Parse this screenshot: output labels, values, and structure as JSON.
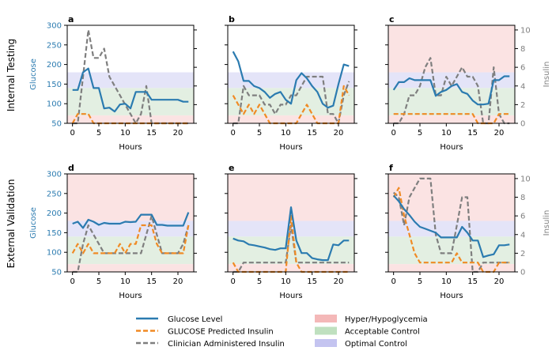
{
  "row_labels": [
    "Internal Testing",
    "External Validation"
  ],
  "y_left_label": "Glucose",
  "y_right_label": "Insulin",
  "x_label": "Hours",
  "colors": {
    "glucose": "#2b7bb0",
    "predicted": "#f08a24",
    "clinician": "#7f7f7f",
    "hyper": "#fbe3e3",
    "acceptable": "#e3efe2",
    "optimal": "#e4e4f8",
    "glucose_axis": "#2b7bb0",
    "insulin_axis": "#808080"
  },
  "legend": {
    "lines": [
      {
        "key": "glucose",
        "label": "Glucose Level",
        "style": "solid"
      },
      {
        "key": "predicted",
        "label": "GLUCOSE Predicted Insulin",
        "style": "dashed"
      },
      {
        "key": "clinician",
        "label": "Clinician Administered Insulin",
        "style": "dashed"
      }
    ],
    "patches": [
      {
        "key": "hyper",
        "label": "Hyper/Hypoglycemia",
        "swatch": "#f4b8b8"
      },
      {
        "key": "acceptable",
        "label": "Acceptable Control",
        "swatch": "#bfe0bf"
      },
      {
        "key": "optimal",
        "label": "Optimal Control",
        "swatch": "#c4c4f0"
      }
    ]
  },
  "chart_data": [
    {
      "panel": "a",
      "type": "line",
      "x": [
        0,
        1,
        2,
        3,
        4,
        5,
        6,
        7,
        8,
        9,
        10,
        11,
        12,
        13,
        14,
        15,
        16,
        17,
        18,
        19,
        20,
        21,
        22
      ],
      "series": [
        {
          "name": "Glucose Level",
          "axis": "left",
          "values": [
            135,
            135,
            180,
            190,
            140,
            140,
            88,
            90,
            80,
            98,
            100,
            88,
            130,
            130,
            130,
            110,
            110,
            110,
            110,
            110,
            110,
            105,
            105
          ]
        },
        {
          "name": "GLUCOSE Predicted Insulin",
          "axis": "right",
          "values": [
            0,
            1,
            1,
            1,
            0,
            0,
            0,
            0,
            0,
            0,
            0,
            0,
            0,
            0,
            0,
            0,
            0,
            0,
            0,
            0,
            0,
            0,
            0
          ]
        },
        {
          "name": "Clinician Administered Insulin",
          "axis": "right",
          "values": [
            0,
            0,
            5,
            10,
            7,
            7,
            8,
            5,
            4,
            3,
            2,
            1,
            0,
            1,
            4,
            0,
            0,
            0,
            0,
            0,
            0,
            0,
            0
          ]
        }
      ],
      "bands": {
        "hyper": false
      },
      "ylim_left": [
        50,
        300
      ],
      "ylim_right": [
        0,
        10.5
      ],
      "xlim": [
        -1,
        23
      ],
      "xticks": [
        0,
        5,
        10,
        15,
        20
      ],
      "yticks_left": [
        50,
        100,
        150,
        200,
        250,
        300
      ],
      "yticks_right": [
        0,
        2,
        4,
        6,
        8,
        10
      ]
    },
    {
      "panel": "b",
      "type": "line",
      "x": [
        0,
        1,
        2,
        3,
        4,
        5,
        6,
        7,
        8,
        9,
        10,
        11,
        12,
        13,
        14,
        15,
        16,
        17,
        18,
        19,
        20,
        21,
        22
      ],
      "series": [
        {
          "name": "Glucose Level",
          "axis": "left",
          "values": [
            233,
            208,
            158,
            158,
            145,
            140,
            130,
            115,
            125,
            130,
            110,
            100,
            160,
            178,
            165,
            145,
            130,
            100,
            90,
            95,
            150,
            200,
            196
          ]
        },
        {
          "name": "GLUCOSE Predicted Insulin",
          "axis": "right",
          "values": [
            3,
            2,
            1,
            2,
            1,
            2,
            1,
            0,
            0,
            0,
            0,
            0,
            0,
            1,
            2,
            1,
            0,
            0,
            0,
            0,
            0,
            4,
            3
          ]
        },
        {
          "name": "Clinician Administered Insulin",
          "axis": "right",
          "values": [
            0,
            0,
            4,
            3,
            3,
            3,
            2,
            2,
            1,
            2,
            2,
            3,
            3,
            4,
            5,
            5,
            5,
            5,
            1,
            1,
            0,
            3,
            4.5
          ]
        }
      ],
      "bands": {
        "hyper": false
      },
      "ylim_left": [
        50,
        300
      ],
      "ylim_right": [
        0,
        10.5
      ],
      "xlim": [
        -1,
        23
      ],
      "xticks": [
        0,
        5,
        10,
        15,
        20
      ],
      "yticks_left": [
        50,
        100,
        150,
        200,
        250,
        300
      ],
      "yticks_right": [
        0,
        2,
        4,
        6,
        8,
        10
      ]
    },
    {
      "panel": "c",
      "type": "line",
      "x": [
        0,
        1,
        2,
        3,
        4,
        5,
        6,
        7,
        8,
        9,
        10,
        11,
        12,
        13,
        14,
        15,
        16,
        17,
        18,
        19,
        20,
        21,
        22
      ],
      "series": [
        {
          "name": "Glucose Level",
          "axis": "left",
          "values": [
            135,
            155,
            155,
            165,
            160,
            160,
            160,
            160,
            120,
            130,
            135,
            145,
            150,
            130,
            125,
            108,
            98,
            98,
            100,
            160,
            160,
            170,
            170
          ]
        },
        {
          "name": "GLUCOSE Predicted Insulin",
          "axis": "right",
          "values": [
            1,
            1,
            1,
            1,
            1,
            1,
            1,
            1,
            1,
            1,
            1,
            1,
            1,
            1,
            1,
            1,
            0,
            0,
            0,
            0,
            1,
            1,
            1
          ]
        },
        {
          "name": "Clinician Administered Insulin",
          "axis": "right",
          "values": [
            0,
            0,
            1,
            3,
            3,
            4,
            6,
            7,
            3,
            3,
            5,
            4,
            5,
            6,
            5,
            5,
            4,
            0,
            0,
            6,
            1,
            0,
            0
          ]
        }
      ],
      "bands": {
        "hyper": true
      },
      "ylim_left": [
        50,
        300
      ],
      "ylim_right": [
        0,
        10.5
      ],
      "xlim": [
        -1,
        23
      ],
      "xticks": [
        0,
        5,
        10,
        15,
        20
      ],
      "yticks_left": [
        50,
        100,
        150,
        200,
        250,
        300
      ],
      "yticks_right": [
        0,
        2,
        4,
        6,
        8,
        10
      ]
    },
    {
      "panel": "d",
      "type": "line",
      "x": [
        0,
        1,
        2,
        3,
        4,
        5,
        6,
        7,
        8,
        9,
        10,
        11,
        12,
        13,
        14,
        15,
        16,
        17,
        18,
        19,
        20,
        21,
        22
      ],
      "series": [
        {
          "name": "Glucose Level",
          "axis": "left",
          "values": [
            173,
            178,
            162,
            183,
            178,
            170,
            175,
            173,
            173,
            173,
            178,
            177,
            178,
            196,
            196,
            196,
            170,
            170,
            168,
            168,
            168,
            168,
            202
          ]
        },
        {
          "name": "GLUCOSE Predicted Insulin",
          "axis": "right",
          "values": [
            2,
            3,
            2,
            3,
            2,
            2,
            2,
            2,
            2,
            3,
            2,
            3,
            3,
            5,
            5,
            5,
            3,
            2,
            2,
            2,
            2,
            2,
            5
          ]
        },
        {
          "name": "Clinician Administered Insulin",
          "axis": "right",
          "values": [
            0,
            0,
            3,
            5,
            4,
            3,
            2,
            2,
            2,
            2,
            2,
            2,
            2,
            2,
            4,
            6,
            4,
            2,
            2,
            2,
            2,
            3,
            5
          ]
        }
      ],
      "bands": {
        "hyper": true
      },
      "ylim_left": [
        50,
        300
      ],
      "ylim_right": [
        0,
        10.5
      ],
      "xlim": [
        -1,
        23
      ],
      "xticks": [
        0,
        5,
        10,
        15,
        20
      ],
      "yticks_left": [
        50,
        100,
        150,
        200,
        250,
        300
      ],
      "yticks_right": [
        0,
        2,
        4,
        6,
        8,
        10
      ]
    },
    {
      "panel": "e",
      "type": "line",
      "x": [
        0,
        1,
        2,
        3,
        4,
        5,
        6,
        7,
        8,
        9,
        10,
        11,
        12,
        13,
        14,
        15,
        16,
        17,
        18,
        19,
        20,
        21,
        22
      ],
      "series": [
        {
          "name": "Glucose Level",
          "axis": "left",
          "values": [
            135,
            130,
            128,
            120,
            118,
            115,
            112,
            108,
            106,
            110,
            110,
            215,
            130,
            98,
            98,
            85,
            82,
            80,
            80,
            120,
            118,
            130,
            130
          ]
        },
        {
          "name": "GLUCOSE Predicted Insulin",
          "axis": "right",
          "values": [
            1,
            0,
            0,
            0,
            0,
            0,
            0,
            0,
            0,
            0,
            0,
            6,
            1,
            0,
            0,
            0,
            0,
            0,
            0,
            0,
            0,
            0,
            0
          ]
        },
        {
          "name": "Clinician Administered Insulin",
          "axis": "right",
          "values": [
            0,
            0,
            1,
            1,
            1,
            1,
            1,
            1,
            1,
            1,
            1,
            5,
            1,
            1,
            1,
            1,
            1,
            1,
            1,
            1,
            1,
            1,
            1
          ]
        }
      ],
      "bands": {
        "hyper": true
      },
      "ylim_left": [
        50,
        300
      ],
      "ylim_right": [
        0,
        10.5
      ],
      "xlim": [
        -1,
        23
      ],
      "xticks": [
        0,
        5,
        10,
        15,
        20
      ],
      "yticks_left": [
        50,
        100,
        150,
        200,
        250,
        300
      ],
      "yticks_right": [
        0,
        2,
        4,
        6,
        8,
        10
      ]
    },
    {
      "panel": "f",
      "type": "line",
      "x": [
        0,
        1,
        2,
        3,
        4,
        5,
        6,
        7,
        8,
        9,
        10,
        11,
        12,
        13,
        14,
        15,
        16,
        17,
        18,
        19,
        20,
        21,
        22
      ],
      "series": [
        {
          "name": "Glucose Level",
          "axis": "left",
          "values": [
            245,
            230,
            210,
            195,
            178,
            165,
            160,
            155,
            150,
            138,
            138,
            138,
            138,
            165,
            150,
            130,
            130,
            88,
            92,
            95,
            118,
            118,
            120
          ]
        },
        {
          "name": "GLUCOSE Predicted Insulin",
          "axis": "right",
          "values": [
            8,
            9,
            6,
            4,
            2,
            1,
            1,
            1,
            1,
            1,
            1,
            1,
            2,
            1,
            1,
            1,
            1,
            0,
            0,
            0,
            1,
            1,
            1
          ]
        },
        {
          "name": "Clinician Administered Insulin",
          "axis": "right",
          "values": [
            8.5,
            8,
            5,
            8,
            9,
            10,
            10,
            10,
            4,
            2,
            2,
            2,
            5,
            8,
            8,
            0,
            0,
            1,
            1,
            1,
            1,
            1,
            1
          ]
        }
      ],
      "bands": {
        "hyper": true
      },
      "ylim_left": [
        50,
        300
      ],
      "ylim_right": [
        0,
        10.5
      ],
      "xlim": [
        -1,
        23
      ],
      "xticks": [
        0,
        5,
        10,
        15,
        20
      ],
      "yticks_left": [
        50,
        100,
        150,
        200,
        250,
        300
      ],
      "yticks_right": [
        0,
        2,
        4,
        6,
        8,
        10
      ]
    }
  ],
  "band_ranges": {
    "hyper_low": [
      50,
      70
    ],
    "acceptable": [
      70,
      140
    ],
    "optimal": [
      140,
      180
    ],
    "hyper_high": [
      180,
      300
    ]
  }
}
